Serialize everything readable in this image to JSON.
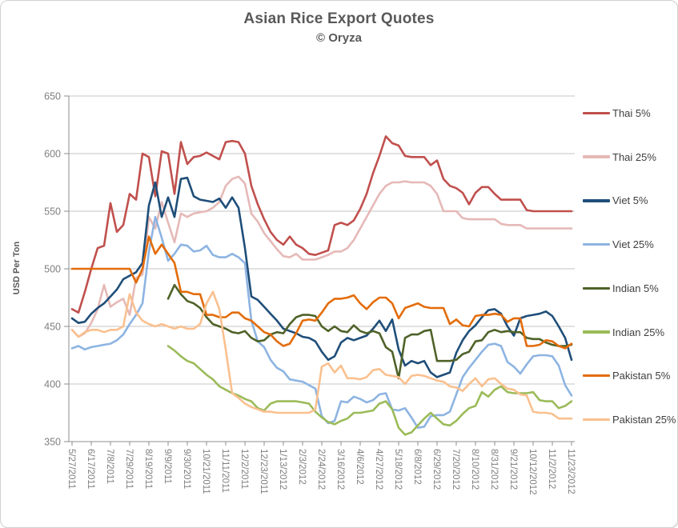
{
  "header": {
    "title": "Asian Rice Export Quotes",
    "subtitle": "© Oryza"
  },
  "chart_data": {
    "type": "line",
    "title": "Asian Rice Export Quotes",
    "subtitle": "© Oryza",
    "xlabel": "",
    "ylabel": "USD Per Ton",
    "ylim": [
      350,
      650
    ],
    "y_ticks": [
      350,
      400,
      450,
      500,
      550,
      600,
      650
    ],
    "grid": "horizontal",
    "legend_position": "right",
    "n_points": 79,
    "x_interval": "weekly",
    "x_tick_step": 3,
    "x_tick_labels": [
      "5/27/2011",
      "6/17/2011",
      "7/8/2011",
      "7/29/2011",
      "8/19/2011",
      "9/9/2011",
      "9/30/2011",
      "10/21/2011",
      "11/11/2011",
      "12/2/2011",
      "12/23/2011",
      "1/13/2012",
      "2/3/2012",
      "2/24/2012",
      "3/16/2012",
      "4/6/2012",
      "4/27/2012",
      "5/18/2012",
      "6/8/2012",
      "6/29/2012",
      "7/20/2012",
      "8/10/2012",
      "8/31/2012",
      "9/21/2012",
      "10/12/2012",
      "11/2/2012",
      "11/23/2012"
    ],
    "axis_colors": {
      "tick_label": "#7f7f7f",
      "axis_line": "#8e8e8e",
      "gridline": "#c4c4c4"
    },
    "series": [
      {
        "name": "Thai 5%",
        "color": "#C0504D",
        "values": [
          465,
          462,
          480,
          500,
          518,
          520,
          557,
          532,
          538,
          565,
          560,
          600,
          597,
          563,
          602,
          600,
          565,
          610,
          591,
          597,
          598,
          601,
          598,
          595,
          610,
          611,
          610,
          600,
          572,
          556,
          543,
          532,
          525,
          521,
          528,
          521,
          518,
          513,
          512,
          514,
          516,
          538,
          540,
          538,
          542,
          552,
          565,
          583,
          598,
          615,
          609,
          607,
          598,
          597,
          597,
          597,
          590,
          594,
          578,
          572,
          570,
          566,
          556,
          566,
          571,
          571,
          565,
          560,
          560,
          560,
          560,
          551,
          550,
          550,
          550,
          550,
          550,
          550,
          550
        ]
      },
      {
        "name": "Thai 25%",
        "color": "#E5B9B7",
        "values": [
          447,
          441,
          444,
          453,
          465,
          486,
          467,
          471,
          474,
          460,
          492,
          495,
          545,
          535,
          558,
          540,
          523,
          548,
          545,
          548,
          549,
          550,
          553,
          558,
          572,
          578,
          580,
          574,
          548,
          541,
          531,
          524,
          517,
          511,
          510,
          513,
          508,
          508,
          508,
          510,
          512,
          515,
          515,
          518,
          525,
          535,
          545,
          555,
          565,
          572,
          575,
          575,
          576,
          575,
          575,
          575,
          572,
          565,
          550,
          550,
          550,
          544,
          543,
          543,
          543,
          543,
          543,
          539,
          538,
          538,
          538,
          535,
          535,
          535,
          535,
          535,
          535,
          535,
          535
        ]
      },
      {
        "name": "Viet 5%",
        "color": "#1F4E79",
        "values": [
          457,
          453,
          454,
          461,
          466,
          470,
          476,
          482,
          491,
          494,
          497,
          505,
          555,
          575,
          545,
          562,
          545,
          578,
          579,
          563,
          560,
          559,
          558,
          561,
          553,
          562,
          553,
          518,
          476,
          473,
          467,
          461,
          455,
          448,
          446,
          444,
          441,
          440,
          437,
          428,
          421,
          424,
          436,
          440,
          438,
          440,
          442,
          448,
          455,
          446,
          456,
          430,
          416,
          420,
          418,
          420,
          410,
          406,
          408,
          410,
          427,
          438,
          446,
          451,
          458,
          464,
          465,
          461,
          450,
          442,
          457,
          459,
          460,
          461,
          463,
          459,
          450,
          440,
          421
        ]
      },
      {
        "name": "Viet 25%",
        "color": "#8DB4E2",
        "values": [
          431,
          433,
          430,
          432,
          433,
          434,
          435,
          438,
          443,
          452,
          460,
          470,
          515,
          545,
          527,
          507,
          513,
          521,
          520,
          515,
          516,
          520,
          512,
          510,
          510,
          513,
          510,
          505,
          455,
          437,
          432,
          421,
          414,
          411,
          404,
          403,
          402,
          399,
          396,
          372,
          366,
          368,
          385,
          384,
          389,
          387,
          384,
          386,
          391,
          392,
          378,
          377,
          379,
          371,
          362,
          363,
          372,
          373,
          373,
          376,
          391,
          406,
          414,
          421,
          428,
          434,
          435,
          433,
          419,
          415,
          409,
          417,
          424,
          425,
          425,
          424,
          416,
          399,
          390
        ]
      },
      {
        "name": "Indian 5%",
        "color": "#4F6228",
        "values": [
          null,
          null,
          null,
          null,
          null,
          null,
          null,
          null,
          null,
          null,
          null,
          null,
          null,
          null,
          null,
          474,
          486,
          478,
          472,
          470,
          466,
          458,
          452,
          450,
          448,
          445,
          444,
          446,
          440,
          437,
          438,
          443,
          445,
          444,
          452,
          458,
          460,
          460,
          459,
          450,
          446,
          450,
          446,
          445,
          451,
          446,
          444,
          446,
          444,
          432,
          428,
          405,
          440,
          443,
          443,
          446,
          447,
          420,
          420,
          420,
          421,
          426,
          428,
          437,
          438,
          445,
          447,
          445,
          446,
          445,
          445,
          440,
          439,
          439,
          436,
          434,
          433,
          433,
          434
        ]
      },
      {
        "name": "Indian 25%",
        "color": "#9BBB59",
        "values": [
          null,
          null,
          null,
          null,
          null,
          null,
          null,
          null,
          null,
          null,
          null,
          null,
          null,
          null,
          null,
          433,
          429,
          424,
          420,
          418,
          413,
          408,
          404,
          398,
          395,
          392,
          390,
          387,
          385,
          379,
          377,
          383,
          385,
          385,
          385,
          385,
          384,
          383,
          376,
          371,
          367,
          365,
          368,
          370,
          375,
          375,
          376,
          377,
          383,
          385,
          378,
          362,
          356,
          358,
          364,
          370,
          375,
          370,
          365,
          364,
          368,
          374,
          379,
          381,
          393,
          389,
          395,
          398,
          393,
          392,
          392,
          392,
          393,
          386,
          385,
          385,
          379,
          381,
          385
        ]
      },
      {
        "name": "Pakistan 5%",
        "color": "#E36C0A",
        "values": [
          500,
          500,
          500,
          500,
          500,
          500,
          500,
          500,
          500,
          500,
          488,
          500,
          528,
          513,
          521,
          513,
          505,
          480,
          480,
          478,
          478,
          460,
          460,
          458,
          458,
          462,
          462,
          457,
          455,
          450,
          445,
          443,
          437,
          433,
          435,
          444,
          455,
          456,
          455,
          462,
          470,
          474,
          474,
          475,
          477,
          470,
          465,
          471,
          475,
          475,
          470,
          457,
          466,
          468,
          470,
          467,
          466,
          466,
          466,
          452,
          456,
          451,
          450,
          459,
          460,
          460,
          461,
          460,
          454,
          457,
          457,
          433,
          433,
          434,
          438,
          437,
          433,
          431,
          435
        ]
      },
      {
        "name": "Pakistan 25%",
        "color": "#FAC08F",
        "values": [
          447,
          441,
          445,
          447,
          447,
          445,
          447,
          447,
          450,
          478,
          462,
          455,
          452,
          450,
          452,
          450,
          448,
          450,
          448,
          448,
          452,
          470,
          480,
          465,
          430,
          392,
          388,
          383,
          380,
          378,
          376,
          376,
          375,
          375,
          375,
          375,
          375,
          375,
          378,
          415,
          418,
          410,
          416,
          405,
          405,
          404,
          406,
          412,
          413,
          408,
          407,
          406,
          400,
          407,
          408,
          407,
          405,
          403,
          402,
          398,
          397,
          394,
          400,
          405,
          398,
          404,
          405,
          400,
          396,
          395,
          391,
          390,
          376,
          375,
          375,
          374,
          370,
          370,
          370
        ]
      }
    ]
  }
}
